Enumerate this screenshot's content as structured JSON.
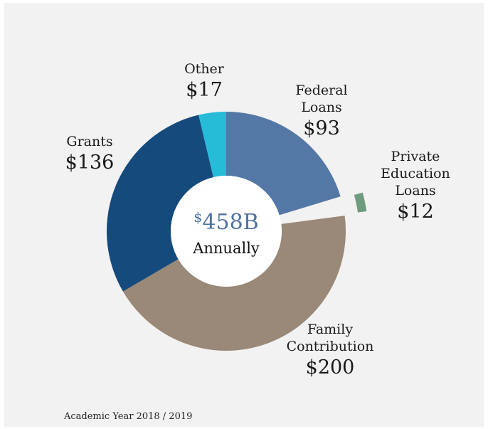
{
  "chart_data": {
    "type": "pie",
    "donut": true,
    "total_value": 458,
    "center_prefix": "$",
    "center_value": "458B",
    "center_label": "Annually",
    "footer": "Academic Year 2018 / 2019",
    "slices": [
      {
        "name": "Federal Loans",
        "label_lines": [
          "Federal",
          "Loans"
        ],
        "value": 93,
        "value_label": "$93",
        "color": "#5478a6",
        "exploded": false
      },
      {
        "name": "Private Education Loans",
        "label_lines": [
          "Private",
          "Education",
          "Loans"
        ],
        "value": 12,
        "value_label": "$12",
        "color": "#6f9c7e",
        "exploded": true
      },
      {
        "name": "Family Contribution",
        "label_lines": [
          "Family",
          "Contribution"
        ],
        "value": 200,
        "value_label": "$200",
        "color": "#9a8878",
        "exploded": false
      },
      {
        "name": "Grants",
        "label_lines": [
          "Grants"
        ],
        "value": 136,
        "value_label": "$136",
        "color": "#154a7c",
        "exploded": false
      },
      {
        "name": "Other",
        "label_lines": [
          "Other"
        ],
        "value": 17,
        "value_label": "$17",
        "color": "#26bcd8",
        "exploded": false
      }
    ]
  }
}
